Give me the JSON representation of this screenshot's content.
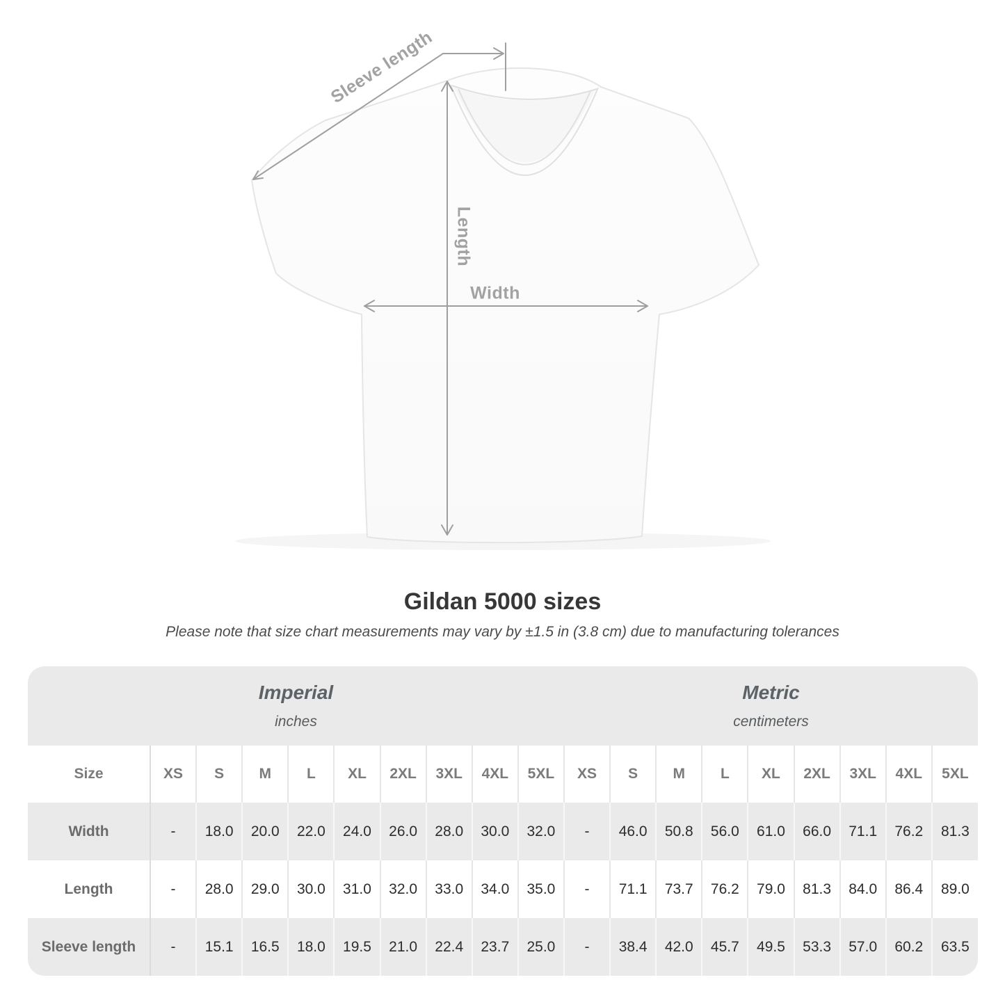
{
  "diagram": {
    "sleeve_label": "Sleeve length",
    "length_label": "Length",
    "width_label": "Width"
  },
  "heading": {
    "title": "Gildan 5000 sizes",
    "note": "Please note that size chart measurements may vary by ±1.5 in (3.8 cm) due to manufacturing tolerances"
  },
  "chart_data": {
    "type": "table",
    "title": "Gildan 5000 sizes",
    "note": "Please note that size chart measurements may vary by ±1.5 in (3.8 cm) due to manufacturing tolerances",
    "unit_groups": [
      {
        "name": "Imperial",
        "unit": "inches"
      },
      {
        "name": "Metric",
        "unit": "centimeters"
      }
    ],
    "size_header_label": "Size",
    "sizes": [
      "XS",
      "S",
      "M",
      "L",
      "XL",
      "2XL",
      "3XL",
      "4XL",
      "5XL"
    ],
    "rows": [
      {
        "label": "Width",
        "imperial": [
          "-",
          "18.0",
          "20.0",
          "22.0",
          "24.0",
          "26.0",
          "28.0",
          "30.0",
          "32.0"
        ],
        "metric": [
          "-",
          "46.0",
          "50.8",
          "56.0",
          "61.0",
          "66.0",
          "71.1",
          "76.2",
          "81.3"
        ]
      },
      {
        "label": "Length",
        "imperial": [
          "-",
          "28.0",
          "29.0",
          "30.0",
          "31.0",
          "32.0",
          "33.0",
          "34.0",
          "35.0"
        ],
        "metric": [
          "-",
          "71.1",
          "73.7",
          "76.2",
          "79.0",
          "81.3",
          "84.0",
          "86.4",
          "89.0"
        ]
      },
      {
        "label": "Sleeve length",
        "imperial": [
          "-",
          "15.1",
          "16.5",
          "18.0",
          "19.5",
          "21.0",
          "22.4",
          "23.7",
          "25.0"
        ],
        "metric": [
          "-",
          "38.4",
          "42.0",
          "45.7",
          "49.5",
          "53.3",
          "57.0",
          "60.2",
          "63.5"
        ]
      }
    ]
  },
  "colors": {
    "table_band_gray": "#eaeaea",
    "measure_line_gray": "#9f9f9f",
    "label_gray": "#a2a2a2",
    "value_text": "#2d2d2d",
    "title_text": "#373737"
  }
}
